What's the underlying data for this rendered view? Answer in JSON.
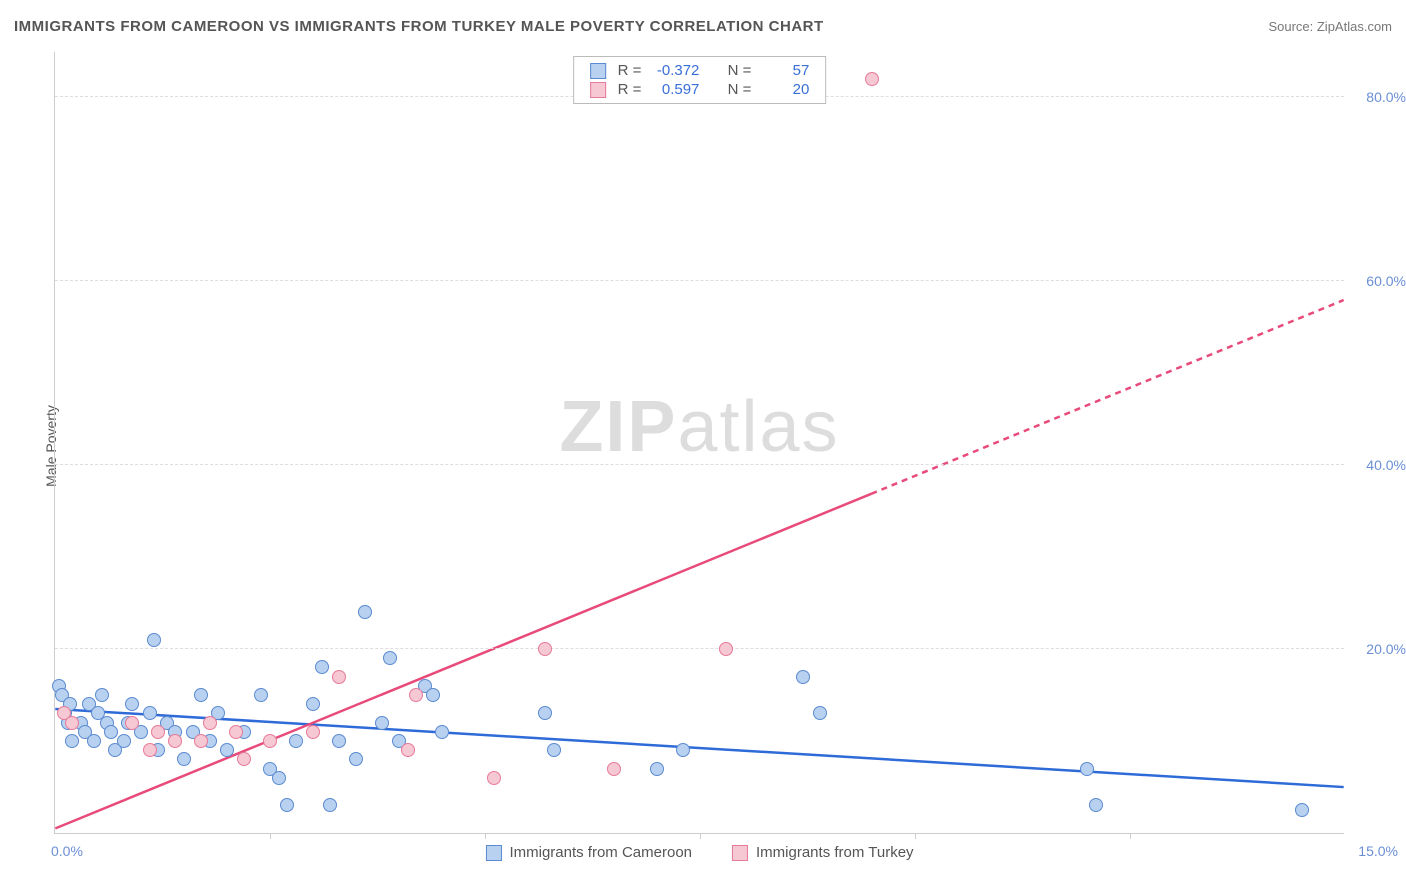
{
  "header": {
    "title": "IMMIGRANTS FROM CAMEROON VS IMMIGRANTS FROM TURKEY MALE POVERTY CORRELATION CHART",
    "source": "Source: ZipAtlas.com"
  },
  "chart": {
    "type": "scatter",
    "ylabel": "Male Poverty",
    "watermark_a": "ZIP",
    "watermark_b": "atlas",
    "xlim": [
      0,
      15
    ],
    "ylim": [
      0,
      85
    ],
    "xlim_labels": {
      "min": "0.0%",
      "max": "15.0%"
    },
    "yticks": [
      {
        "v": 20,
        "label": "20.0%"
      },
      {
        "v": 40,
        "label": "40.0%"
      },
      {
        "v": 60,
        "label": "60.0%"
      },
      {
        "v": 80,
        "label": "80.0%"
      }
    ],
    "xticks": [
      2.5,
      5.0,
      7.5,
      10.0,
      12.5
    ],
    "series": [
      {
        "name": "Immigrants from Cameroon",
        "fill": "#b9d1f0",
        "stroke": "#5a8ad0",
        "line_color": "#2e6bd8",
        "r_label": "R =",
        "r_value": "-0.372",
        "n_label": "N =",
        "n_value": "57",
        "trend": {
          "x1": 0,
          "y1": 13.5,
          "x2": 15,
          "y2": 5.0,
          "dashed": false
        },
        "points": [
          [
            0.05,
            16
          ],
          [
            0.08,
            15
          ],
          [
            0.12,
            13
          ],
          [
            0.15,
            12
          ],
          [
            0.18,
            14
          ],
          [
            0.2,
            10
          ],
          [
            0.3,
            12
          ],
          [
            0.35,
            11
          ],
          [
            0.4,
            14
          ],
          [
            0.45,
            10
          ],
          [
            0.5,
            13
          ],
          [
            0.55,
            15
          ],
          [
            0.6,
            12
          ],
          [
            0.65,
            11
          ],
          [
            0.7,
            9
          ],
          [
            0.8,
            10
          ],
          [
            0.85,
            12
          ],
          [
            0.9,
            14
          ],
          [
            1.0,
            11
          ],
          [
            1.1,
            13
          ],
          [
            1.15,
            21
          ],
          [
            1.2,
            9
          ],
          [
            1.3,
            12
          ],
          [
            1.4,
            11
          ],
          [
            1.5,
            8
          ],
          [
            1.6,
            11
          ],
          [
            1.7,
            15
          ],
          [
            1.8,
            10
          ],
          [
            1.9,
            13
          ],
          [
            2.0,
            9
          ],
          [
            2.2,
            11
          ],
          [
            2.4,
            15
          ],
          [
            2.5,
            7
          ],
          [
            2.6,
            6
          ],
          [
            2.8,
            10
          ],
          [
            2.7,
            3
          ],
          [
            3.0,
            14
          ],
          [
            3.1,
            18
          ],
          [
            3.2,
            3
          ],
          [
            3.3,
            10
          ],
          [
            3.5,
            8
          ],
          [
            3.6,
            24
          ],
          [
            3.8,
            12
          ],
          [
            3.9,
            19
          ],
          [
            4.0,
            10
          ],
          [
            4.3,
            16
          ],
          [
            4.4,
            15
          ],
          [
            4.5,
            11
          ],
          [
            5.7,
            13
          ],
          [
            5.8,
            9
          ],
          [
            7.0,
            7
          ],
          [
            7.3,
            9
          ],
          [
            8.7,
            17
          ],
          [
            8.9,
            13
          ],
          [
            12.0,
            7
          ],
          [
            12.1,
            3
          ],
          [
            14.5,
            2.5
          ]
        ]
      },
      {
        "name": "Immigrants from Turkey",
        "fill": "#f6c8d3",
        "stroke": "#e67a99",
        "line_color": "#e84a7a",
        "r_label": "R =",
        "r_value": "0.597",
        "n_label": "N =",
        "n_value": "20",
        "trend": {
          "x1": 0,
          "y1": 0.5,
          "x2": 15,
          "y2": 58,
          "dashed_after_x": 9.5
        },
        "points": [
          [
            0.1,
            13
          ],
          [
            0.2,
            12
          ],
          [
            0.9,
            12
          ],
          [
            1.1,
            9
          ],
          [
            1.2,
            11
          ],
          [
            1.4,
            10
          ],
          [
            1.7,
            10
          ],
          [
            1.8,
            12
          ],
          [
            2.1,
            11
          ],
          [
            2.2,
            8
          ],
          [
            2.5,
            10
          ],
          [
            3.0,
            11
          ],
          [
            3.3,
            17
          ],
          [
            4.1,
            9
          ],
          [
            4.2,
            15
          ],
          [
            5.1,
            6
          ],
          [
            5.7,
            20
          ],
          [
            6.5,
            7
          ],
          [
            7.8,
            20
          ],
          [
            9.5,
            82
          ]
        ]
      }
    ],
    "marker_radius": 7,
    "background_color": "#ffffff"
  }
}
